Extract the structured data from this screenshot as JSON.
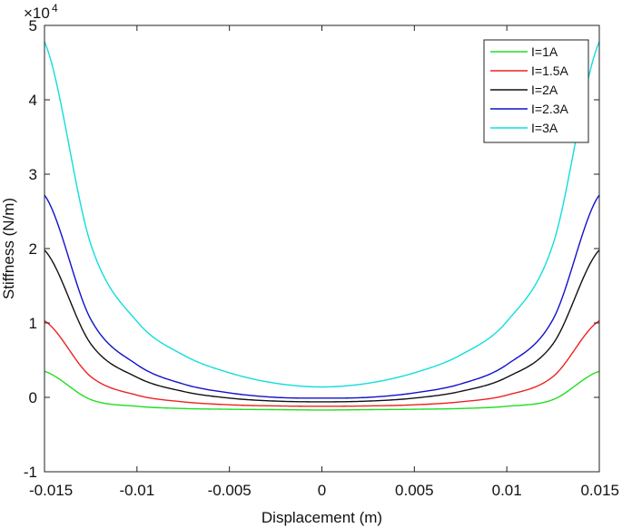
{
  "chart_data": {
    "type": "line",
    "xlabel": "Displacement (m)",
    "ylabel": "Stiffness (N/m)",
    "y_exponent_label": "×10",
    "y_exponent_power": "4",
    "xlim": [
      -0.015,
      0.015
    ],
    "ylim": [
      -1,
      5
    ],
    "x_ticks": [
      -0.015,
      -0.01,
      -0.005,
      0,
      0.005,
      0.01,
      0.015
    ],
    "x_tick_labels": [
      "-0.015",
      "-0.01",
      "-0.005",
      "0",
      "0.005",
      "0.01",
      "0.015"
    ],
    "y_ticks": [
      -1,
      0,
      1,
      2,
      3,
      4,
      5
    ],
    "y_tick_labels": [
      "-1",
      "0",
      "1",
      "2",
      "3",
      "4",
      "5"
    ],
    "grid": false,
    "legend_position": "top-right",
    "x": [
      -0.015,
      -0.0125,
      -0.01,
      -0.0075,
      -0.005,
      -0.0025,
      0,
      0.0025,
      0.005,
      0.0075,
      0.01,
      0.0125,
      0.015
    ],
    "series": [
      {
        "name": "I=1A",
        "color": "#22dd22",
        "values": [
          0.35,
          -0.03,
          -0.12,
          -0.15,
          -0.16,
          -0.165,
          -0.17,
          -0.165,
          -0.16,
          -0.15,
          -0.12,
          -0.03,
          0.35
        ]
      },
      {
        "name": "I=1.5A",
        "color": "#ee2222",
        "values": [
          1.03,
          0.28,
          0.03,
          -0.06,
          -0.1,
          -0.115,
          -0.12,
          -0.115,
          -0.1,
          -0.06,
          0.03,
          0.28,
          1.03
        ]
      },
      {
        "name": "I=2A",
        "color": "#111111",
        "values": [
          1.98,
          0.72,
          0.27,
          0.08,
          -0.01,
          -0.05,
          -0.06,
          -0.05,
          -0.01,
          0.08,
          0.27,
          0.72,
          1.98
        ]
      },
      {
        "name": "I=2.3A",
        "color": "#1111cc",
        "values": [
          2.72,
          1.05,
          0.44,
          0.18,
          0.06,
          0.0,
          -0.01,
          0.0,
          0.06,
          0.18,
          0.44,
          1.05,
          2.72
        ]
      },
      {
        "name": "I=3A",
        "color": "#11dddd",
        "values": [
          4.78,
          2.06,
          1.02,
          0.57,
          0.33,
          0.19,
          0.14,
          0.19,
          0.33,
          0.57,
          1.02,
          2.06,
          4.78
        ]
      }
    ]
  }
}
